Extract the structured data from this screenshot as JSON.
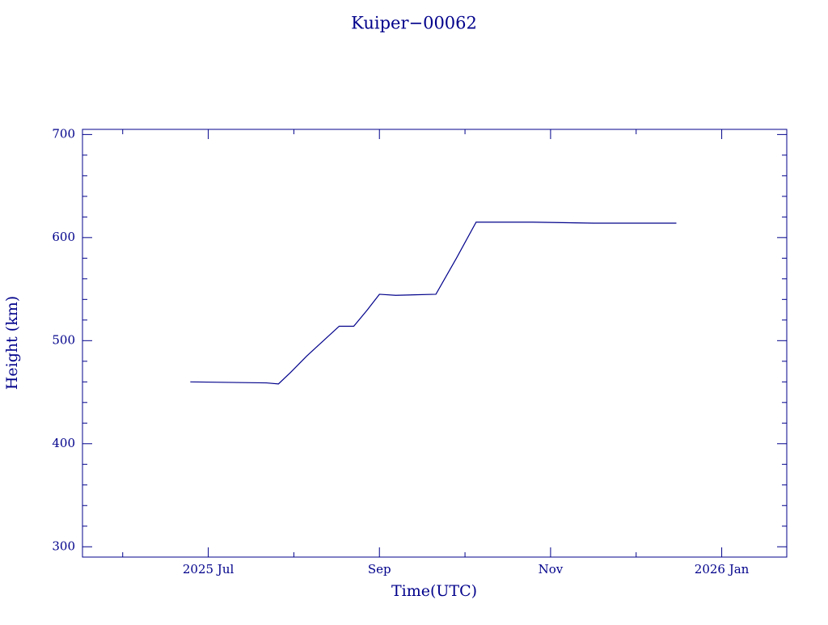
{
  "chart_data": {
    "type": "line",
    "title": "Kuiper−00062",
    "x_label": "Time(UTC)",
    "y_label": "Height (km)",
    "color": "#00008b",
    "xlim": [
      5.53,
      13.76
    ],
    "xticks": [
      {
        "value": 7,
        "label": "2025 Jul"
      },
      {
        "value": 9,
        "label": "Sep"
      },
      {
        "value": 11,
        "label": "Nov"
      },
      {
        "value": 13,
        "label": "2026 Jan"
      }
    ],
    "xminorticks": [
      6,
      8,
      10,
      12
    ],
    "ylim": [
      290,
      705
    ],
    "yticks": [
      300,
      400,
      500,
      600,
      700
    ],
    "yminorticks": [
      320,
      340,
      360,
      380,
      420,
      440,
      460,
      480,
      520,
      540,
      560,
      580,
      620,
      640,
      660,
      680
    ],
    "x": [
      6.79,
      7.68,
      7.82,
      7.96,
      8.15,
      8.53,
      8.7,
      8.86,
      9.0,
      9.19,
      9.66,
      9.9,
      10.13,
      10.79,
      11.5,
      12.47
    ],
    "values": [
      460,
      459,
      458,
      469,
      485,
      514,
      514,
      530,
      545,
      544,
      545,
      580,
      615,
      615,
      614,
      614
    ]
  }
}
